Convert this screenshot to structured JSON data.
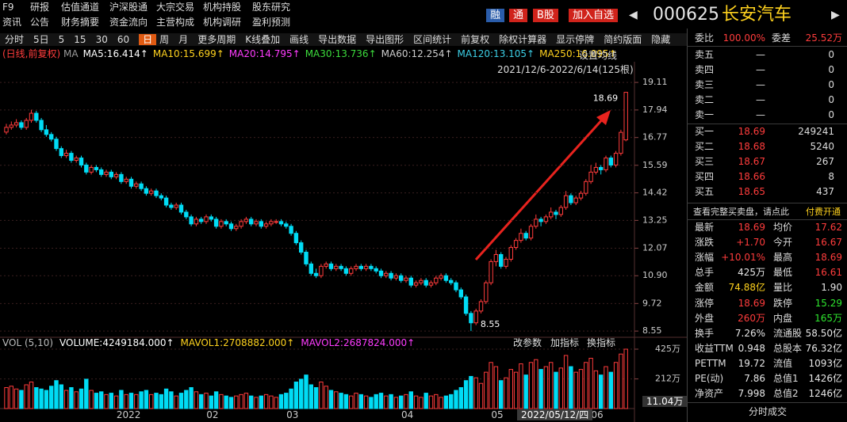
{
  "header": {
    "nav_row1": [
      "F9",
      "研报",
      "估值通道",
      "沪深股通",
      "大宗交易",
      "机构持股",
      "股东研究"
    ],
    "nav_row2": [
      "资讯",
      "公告",
      "财务摘要",
      "资金流向",
      "主营构成",
      "机构调研",
      "盈利预测"
    ],
    "buttons": [
      {
        "label": "融",
        "color": "#2a5caa"
      },
      {
        "label": "通",
        "color": "#d0231b"
      },
      {
        "label": "B股",
        "color": "#d0231b"
      },
      {
        "label": "加入自选",
        "color": "#d0231b"
      }
    ],
    "prev": "◀",
    "next": "▶",
    "code": "000625",
    "name": "长安汽车"
  },
  "toolbar": [
    "分时",
    "5日",
    "5",
    "15",
    "30",
    "60",
    "日",
    "周",
    "月",
    "更多周期",
    "K线叠加",
    "画线",
    "导出数据",
    "导出图形",
    "区间统计",
    "前复权",
    "除权计算器",
    "显示停牌",
    "简约版面",
    "隐藏"
  ],
  "toolbar_active": "日",
  "chart_data": [
    {
      "type": "candlestick",
      "subtitle": "(日线,前复权)",
      "ma_legend": [
        {
          "label": "MA",
          "color": "#999999"
        },
        {
          "label": "MA5:16.414↑",
          "color": "#ffffff"
        },
        {
          "label": "MA10:15.699↑",
          "color": "#ffd21e"
        },
        {
          "label": "MA20:14.795↑",
          "color": "#ff3cff"
        },
        {
          "label": "MA30:13.736↑",
          "color": "#3cdc3c"
        },
        {
          "label": "MA60:12.254↑",
          "color": "#cccccc"
        },
        {
          "label": "MA120:13.105↑",
          "color": "#3ccfe6"
        },
        {
          "label": "MA250:16.095↑",
          "color": "#ffd21e"
        }
      ],
      "settings_label": "设置均线",
      "range_label": "2021/12/6-2022/6/14(125根)",
      "high_label": "18.69",
      "low_label": "8.55",
      "up_color": "#ff3b3b",
      "down_color": "#00dcf5",
      "categories": [
        null,
        null,
        null,
        null,
        null,
        null,
        null,
        null,
        null,
        null,
        null,
        null,
        null,
        null,
        null,
        null,
        null,
        null,
        null,
        null,
        null,
        null,
        null,
        "2022",
        null,
        null,
        null,
        null,
        null,
        null,
        null,
        null,
        null,
        null,
        null,
        null,
        null,
        null,
        null,
        null,
        null,
        "02",
        null,
        null,
        null,
        null,
        null,
        null,
        null,
        null,
        null,
        null,
        null,
        null,
        null,
        null,
        null,
        "03",
        null,
        null,
        null,
        null,
        null,
        null,
        null,
        null,
        null,
        null,
        null,
        null,
        null,
        null,
        null,
        null,
        null,
        null,
        null,
        null,
        null,
        null,
        "04",
        null,
        null,
        null,
        null,
        null,
        null,
        null,
        null,
        null,
        null,
        null,
        null,
        null,
        null,
        null,
        null,
        null,
        "05",
        null,
        null,
        null,
        null,
        null,
        null,
        null,
        null,
        null,
        null,
        null,
        null,
        null,
        null,
        null,
        null,
        null,
        null,
        null,
        "06",
        null,
        null,
        null,
        null,
        null,
        null
      ],
      "ohlc": [
        [
          17.0,
          17.35,
          16.9,
          17.2
        ],
        [
          17.2,
          17.45,
          17.1,
          17.3
        ],
        [
          17.3,
          17.55,
          17.2,
          17.4
        ],
        [
          17.4,
          17.5,
          17.1,
          17.2
        ],
        [
          17.2,
          17.6,
          17.1,
          17.5
        ],
        [
          17.5,
          17.95,
          17.4,
          17.8
        ],
        [
          17.8,
          17.9,
          17.4,
          17.5
        ],
        [
          17.5,
          17.6,
          17.0,
          17.1
        ],
        [
          17.1,
          17.3,
          16.8,
          16.9
        ],
        [
          16.9,
          17.0,
          16.6,
          16.7
        ],
        [
          16.7,
          16.8,
          16.2,
          16.3
        ],
        [
          16.3,
          16.4,
          15.9,
          16.0
        ],
        [
          16.0,
          16.25,
          15.9,
          16.1
        ],
        [
          16.1,
          16.2,
          15.7,
          15.8
        ],
        [
          15.8,
          16.0,
          15.7,
          15.9
        ],
        [
          15.9,
          16.0,
          15.5,
          15.6
        ],
        [
          15.6,
          15.7,
          15.2,
          15.3
        ],
        [
          15.3,
          15.6,
          15.2,
          15.5
        ],
        [
          15.5,
          15.6,
          15.3,
          15.4
        ],
        [
          15.4,
          15.5,
          15.1,
          15.2
        ],
        [
          15.2,
          15.4,
          15.1,
          15.3
        ],
        [
          15.3,
          15.4,
          15.0,
          15.1
        ],
        [
          15.1,
          15.3,
          15.0,
          15.2
        ],
        [
          15.2,
          15.3,
          14.8,
          14.9
        ],
        [
          14.9,
          15.1,
          14.8,
          15.0
        ],
        [
          15.0,
          15.1,
          14.6,
          14.7
        ],
        [
          14.7,
          14.9,
          14.6,
          14.8
        ],
        [
          14.8,
          14.9,
          14.5,
          14.6
        ],
        [
          14.6,
          14.7,
          14.3,
          14.4
        ],
        [
          14.4,
          14.6,
          14.3,
          14.5
        ],
        [
          14.5,
          14.6,
          14.2,
          14.3
        ],
        [
          14.3,
          14.4,
          14.1,
          14.2
        ],
        [
          14.2,
          14.3,
          13.8,
          13.9
        ],
        [
          13.9,
          14.0,
          13.7,
          13.8
        ],
        [
          13.8,
          14.0,
          13.7,
          13.9
        ],
        [
          13.9,
          14.0,
          13.5,
          13.6
        ],
        [
          13.6,
          13.7,
          13.3,
          13.4
        ],
        [
          13.4,
          13.5,
          13.0,
          13.1
        ],
        [
          13.1,
          13.4,
          13.0,
          13.3
        ],
        [
          13.3,
          13.4,
          13.1,
          13.2
        ],
        [
          13.2,
          13.5,
          13.1,
          13.4
        ],
        [
          13.4,
          13.5,
          13.2,
          13.3
        ],
        [
          13.3,
          13.4,
          12.9,
          13.0
        ],
        [
          13.0,
          13.3,
          12.9,
          13.2
        ],
        [
          13.2,
          13.3,
          13.0,
          13.1
        ],
        [
          13.1,
          13.2,
          12.8,
          12.9
        ],
        [
          12.9,
          13.1,
          12.8,
          13.0
        ],
        [
          13.0,
          13.3,
          12.9,
          13.2
        ],
        [
          13.2,
          13.4,
          13.1,
          13.3
        ],
        [
          13.3,
          13.4,
          13.0,
          13.1
        ],
        [
          13.1,
          13.3,
          13.0,
          13.2
        ],
        [
          13.2,
          13.3,
          12.9,
          13.0
        ],
        [
          13.0,
          13.2,
          12.9,
          13.1
        ],
        [
          13.1,
          13.3,
          13.0,
          13.2
        ],
        [
          13.2,
          13.3,
          13.1,
          13.2
        ],
        [
          13.2,
          13.3,
          13.0,
          13.1
        ],
        [
          13.1,
          13.2,
          12.9,
          13.0
        ],
        [
          13.0,
          13.1,
          12.6,
          12.7
        ],
        [
          12.7,
          12.8,
          12.2,
          12.3
        ],
        [
          12.3,
          12.4,
          11.8,
          11.9
        ],
        [
          11.9,
          12.0,
          11.3,
          11.4
        ],
        [
          11.4,
          11.5,
          10.9,
          11.0
        ],
        [
          11.0,
          11.2,
          10.8,
          10.9
        ],
        [
          10.9,
          11.4,
          10.8,
          11.3
        ],
        [
          11.3,
          11.5,
          11.2,
          11.4
        ],
        [
          11.4,
          11.5,
          11.1,
          11.2
        ],
        [
          11.2,
          11.4,
          11.1,
          11.3
        ],
        [
          11.3,
          11.4,
          11.1,
          11.2
        ],
        [
          11.2,
          11.3,
          10.9,
          11.0
        ],
        [
          11.0,
          11.3,
          10.9,
          11.2
        ],
        [
          11.2,
          11.4,
          11.1,
          11.3
        ],
        [
          11.3,
          11.4,
          11.1,
          11.2
        ],
        [
          11.2,
          11.4,
          11.1,
          11.3
        ],
        [
          11.3,
          11.4,
          11.1,
          11.2
        ],
        [
          11.2,
          11.3,
          11.0,
          11.1
        ],
        [
          11.1,
          11.2,
          10.8,
          10.9
        ],
        [
          10.9,
          11.1,
          10.8,
          11.0
        ],
        [
          11.0,
          11.1,
          10.7,
          10.8
        ],
        [
          10.8,
          11.0,
          10.7,
          10.9
        ],
        [
          10.9,
          11.0,
          10.6,
          10.7
        ],
        [
          10.7,
          10.9,
          10.6,
          10.8
        ],
        [
          10.8,
          10.9,
          10.4,
          10.5
        ],
        [
          10.5,
          10.7,
          10.4,
          10.6
        ],
        [
          10.6,
          10.8,
          10.5,
          10.7
        ],
        [
          10.7,
          10.8,
          10.4,
          10.5
        ],
        [
          10.5,
          10.7,
          10.4,
          10.6
        ],
        [
          10.6,
          10.9,
          10.5,
          10.8
        ],
        [
          10.8,
          11.0,
          10.7,
          10.9
        ],
        [
          10.9,
          11.0,
          10.6,
          10.7
        ],
        [
          10.7,
          10.8,
          10.5,
          10.6
        ],
        [
          10.6,
          10.7,
          10.2,
          10.3
        ],
        [
          10.3,
          10.4,
          9.9,
          10.0
        ],
        [
          10.0,
          10.1,
          9.2,
          9.3
        ],
        [
          9.3,
          9.4,
          8.55,
          8.9
        ],
        [
          8.9,
          9.5,
          8.8,
          9.4
        ],
        [
          9.4,
          9.9,
          9.3,
          9.8
        ],
        [
          9.8,
          10.7,
          9.7,
          10.6
        ],
        [
          10.6,
          11.6,
          10.5,
          11.5
        ],
        [
          11.5,
          12.0,
          11.3,
          11.8
        ],
        [
          11.8,
          11.9,
          11.2,
          11.3
        ],
        [
          11.3,
          11.7,
          11.2,
          11.6
        ],
        [
          11.6,
          12.2,
          11.5,
          12.1
        ],
        [
          12.1,
          12.5,
          12.0,
          12.4
        ],
        [
          12.4,
          12.9,
          12.3,
          12.7
        ],
        [
          12.7,
          12.8,
          12.4,
          12.5
        ],
        [
          12.5,
          13.1,
          12.4,
          13.0
        ],
        [
          13.0,
          13.5,
          12.9,
          13.3
        ],
        [
          13.3,
          13.4,
          13.0,
          13.2
        ],
        [
          13.2,
          13.5,
          13.1,
          13.4
        ],
        [
          13.4,
          13.8,
          13.3,
          13.6
        ],
        [
          13.6,
          13.7,
          13.3,
          13.5
        ],
        [
          13.5,
          13.9,
          13.4,
          13.8
        ],
        [
          13.8,
          14.5,
          13.7,
          14.3
        ],
        [
          14.3,
          14.4,
          13.9,
          14.0
        ],
        [
          14.0,
          14.3,
          13.9,
          14.2
        ],
        [
          14.2,
          14.5,
          14.1,
          14.4
        ],
        [
          14.4,
          15.0,
          14.3,
          14.9
        ],
        [
          14.9,
          15.6,
          14.8,
          15.3
        ],
        [
          15.3,
          15.7,
          15.2,
          15.5
        ],
        [
          15.5,
          15.6,
          15.2,
          15.4
        ],
        [
          15.4,
          16.0,
          15.3,
          15.9
        ],
        [
          15.9,
          16.0,
          15.5,
          15.6
        ],
        [
          15.6,
          16.2,
          15.5,
          16.1
        ],
        [
          16.1,
          17.1,
          16.0,
          16.99
        ],
        [
          16.67,
          18.69,
          16.61,
          18.69
        ]
      ],
      "ylim": [
        8.42,
        19.92
      ],
      "yticks": [
        19.11,
        17.94,
        16.77,
        15.59,
        14.42,
        13.25,
        12.07,
        {
          "value": 10.9,
          "label": "10.90"
        },
        9.72,
        8.55
      ],
      "grid": true
    },
    {
      "type": "bar",
      "legend": [
        {
          "label": "VOL (5,10)",
          "color": "#bbbbbb"
        },
        {
          "label": "VOLUME:4249184.000↑",
          "color": "#ffffff"
        },
        {
          "label": "MAVOL1:2708882.000↑",
          "color": "#ffd21e"
        },
        {
          "label": "MAVOL2:2687824.000↑",
          "color": "#ff3cff"
        }
      ],
      "buttons": [
        "改参数",
        "加指标",
        "换指标"
      ],
      "cursor_value": "11.04万",
      "cursor_date": "2022/05/12/四",
      "values": [
        150,
        160,
        140,
        130,
        170,
        190,
        150,
        140,
        130,
        160,
        200,
        170,
        130,
        150,
        120,
        140,
        210,
        130,
        110,
        120,
        100,
        110,
        90,
        130,
        100,
        110,
        100,
        120,
        130,
        100,
        110,
        100,
        140,
        120,
        90,
        110,
        130,
        150,
        120,
        100,
        110,
        90,
        120,
        100,
        90,
        80,
        90,
        100,
        110,
        90,
        80,
        90,
        100,
        90,
        80,
        100,
        110,
        140,
        190,
        210,
        240,
        170,
        150,
        190,
        160,
        130,
        120,
        110,
        100,
        90,
        110,
        100,
        90,
        80,
        100,
        110,
        90,
        100,
        80,
        90,
        100,
        120,
        90,
        80,
        110,
        90,
        100,
        80,
        90,
        100,
        130,
        150,
        200,
        230,
        220,
        180,
        260,
        330,
        300,
        200,
        220,
        280,
        260,
        320,
        240,
        330,
        350,
        280,
        300,
        330,
        260,
        290,
        380,
        300,
        260,
        280,
        330,
        360,
        270,
        240,
        300,
        260,
        330,
        390,
        424.92
      ],
      "ylim": [
        0,
        425
      ],
      "yticks": [
        {
          "value": 425,
          "label": "425万"
        },
        {
          "value": 212,
          "label": "212万"
        }
      ]
    }
  ],
  "order_book": {
    "ratio_label": "委比",
    "ratio": "100.00%",
    "diff_label": "委差",
    "diff": "25.52万",
    "sells": [
      [
        "卖五",
        "—",
        "0"
      ],
      [
        "卖四",
        "—",
        "0"
      ],
      [
        "卖三",
        "—",
        "0"
      ],
      [
        "卖二",
        "—",
        "0"
      ],
      [
        "卖一",
        "—",
        "0"
      ]
    ],
    "buys": [
      [
        "买一",
        "18.69",
        "249241"
      ],
      [
        "买二",
        "18.68",
        "5240"
      ],
      [
        "买三",
        "18.67",
        "267"
      ],
      [
        "买四",
        "18.66",
        "8"
      ],
      [
        "买五",
        "18.65",
        "437"
      ]
    ],
    "notice": "查看完整买卖盘，请点此",
    "notice_link": "付费开通"
  },
  "stats": [
    [
      {
        "k": "最新",
        "v": "18.69",
        "c": "#ff3c3c"
      },
      {
        "k": "均价",
        "v": "17.62",
        "c": "#ff3c3c"
      }
    ],
    [
      {
        "k": "涨跌",
        "v": "+1.70",
        "c": "#ff3c3c"
      },
      {
        "k": "今开",
        "v": "16.67",
        "c": "#ff3c3c"
      }
    ],
    [
      {
        "k": "涨幅",
        "v": "+10.01%",
        "c": "#ff3c3c"
      },
      {
        "k": "最高",
        "v": "18.69",
        "c": "#ff3c3c"
      }
    ],
    [
      {
        "k": "总手",
        "v": "425万",
        "c": "#e6e6e6"
      },
      {
        "k": "最低",
        "v": "16.61",
        "c": "#ff3c3c"
      }
    ],
    [
      {
        "k": "金额",
        "v": "74.88亿",
        "c": "#ffd21e"
      },
      {
        "k": "量比",
        "v": "1.90",
        "c": "#e6e6e6"
      }
    ],
    [
      {
        "k": "涨停",
        "v": "18.69",
        "c": "#ff3c3c"
      },
      {
        "k": "跌停",
        "v": "15.29",
        "c": "#2ee62e"
      }
    ],
    [
      {
        "k": "外盘",
        "v": "260万",
        "c": "#ff3c3c"
      },
      {
        "k": "内盘",
        "v": "165万",
        "c": "#2ee62e"
      }
    ],
    [
      {
        "k": "换手",
        "v": "7.26%",
        "c": "#e6e6e6"
      },
      {
        "k": "流通股",
        "v": "58.50亿",
        "c": "#e6e6e6"
      }
    ],
    [
      {
        "k": "收益TTM",
        "v": "0.948",
        "c": "#e6e6e6"
      },
      {
        "k": "总股本",
        "v": "76.32亿",
        "c": "#e6e6e6"
      }
    ],
    [
      {
        "k": "PETTM",
        "v": "19.72",
        "c": "#e6e6e6"
      },
      {
        "k": "流值",
        "v": "1093亿",
        "c": "#e6e6e6"
      }
    ],
    [
      {
        "k": "PE(动)",
        "v": "7.86",
        "c": "#e6e6e6"
      },
      {
        "k": "总值1",
        "v": "1426亿",
        "c": "#e6e6e6"
      }
    ],
    [
      {
        "k": "净资产",
        "v": "7.998",
        "c": "#e6e6e6"
      },
      {
        "k": "总值2",
        "v": "1246亿",
        "c": "#e6e6e6"
      }
    ]
  ],
  "footer_tab": "分时成交"
}
